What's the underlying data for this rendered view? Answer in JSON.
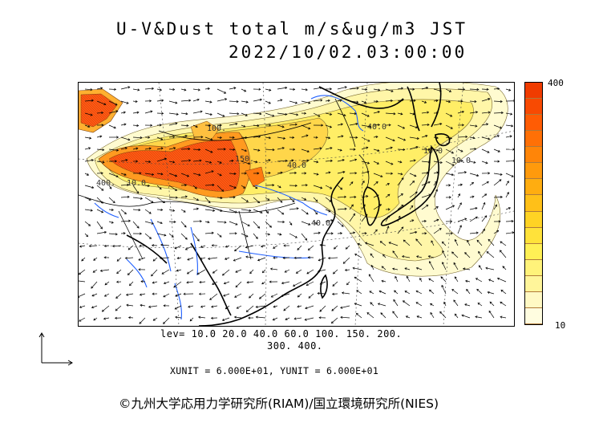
{
  "title": {
    "line1": "U-V&Dust total m/s&ug/m3 JST",
    "line2": "2022/10/02.03:00:00"
  },
  "colorbar": {
    "max_label": "400",
    "min_label": "10",
    "colors": [
      "#fffde0",
      "#fff9c4",
      "#fff59a",
      "#fff37a",
      "#fff055",
      "#ffe23a",
      "#ffd324",
      "#ffc018",
      "#ffad10",
      "#ff9a0c",
      "#ff8508",
      "#ff7006",
      "#ff5c04",
      "#f84a02",
      "#f03c00"
    ]
  },
  "levels": {
    "line1": "lev= 10.0 20.0 40.0 60.0 100. 150. 200.",
    "line2": "300. 400."
  },
  "units": "XUNIT = 6.000E+01, YUNIT = 6.000E+01",
  "contour_labels": [
    "40.0",
    "10.0",
    "40.0",
    "100.",
    "400.",
    "150.",
    "10.0",
    "40.0",
    "10.0"
  ],
  "copyright": "©九州大学応用力学研究所(RIAM)/国立環境研究所(NIES)",
  "legend": {
    "colors": {
      "coast": "#000000",
      "river": "#1f5fff",
      "dust_high": "#f05a14",
      "dust_low": "#fff59a"
    }
  }
}
